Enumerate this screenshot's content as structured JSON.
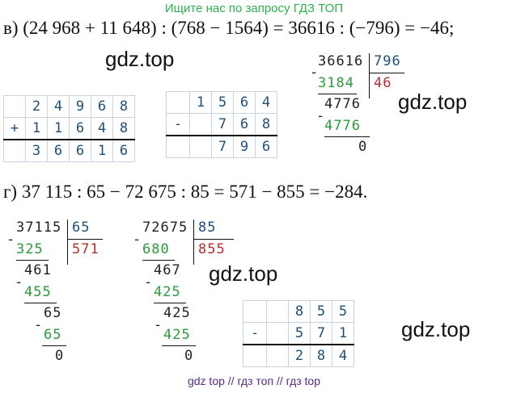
{
  "banner": "Ищите нас по запросу ГДЗ ТОП",
  "eq_v": "в) (24 968 + 11 648) : (768 − 1564) = 36616 : (−796) = −46;",
  "eq_g": "г) 37 115 : 65 − 72 675 : 85 = 571 − 855 = −284.",
  "watermark": "gdz.top",
  "footer": "gdz top  //  гдз топ  //  гдз top",
  "add_table": {
    "op": "+",
    "row1": [
      "2",
      "4",
      "9",
      "6",
      "8"
    ],
    "row2": [
      "1",
      "1",
      "6",
      "4",
      "8"
    ],
    "result": [
      "3",
      "6",
      "6",
      "1",
      "6"
    ]
  },
  "sub1_table": {
    "op": "-",
    "row1": [
      "1",
      "5",
      "6",
      "4"
    ],
    "row2": [
      "7",
      "6",
      "8"
    ],
    "result": [
      "7",
      "9",
      "6"
    ]
  },
  "sub2_table": {
    "op": "-",
    "row1": [
      "8",
      "5",
      "5"
    ],
    "row2": [
      "5",
      "7",
      "1"
    ],
    "result": [
      "2",
      "8",
      "4"
    ]
  },
  "div1": {
    "dividend": "36616",
    "divisor": "796",
    "sub1": "3184",
    "quotient": "46",
    "rem1": "4776",
    "sub2": "4776",
    "rem2": "0",
    "minus": "-"
  },
  "div2": {
    "dividend": "37115",
    "divisor": "65",
    "sub1": "325",
    "quotient": "571",
    "rem1": "461",
    "sub2": "455",
    "rem2": "65",
    "sub3": "65",
    "rem3": "0",
    "minus": "-"
  },
  "div3": {
    "dividend": "72675",
    "divisor": "85",
    "sub1": "680",
    "quotient": "855",
    "rem1": "467",
    "sub2": "425",
    "rem2": "425",
    "sub3": "425",
    "rem3": "0",
    "minus": "-"
  }
}
